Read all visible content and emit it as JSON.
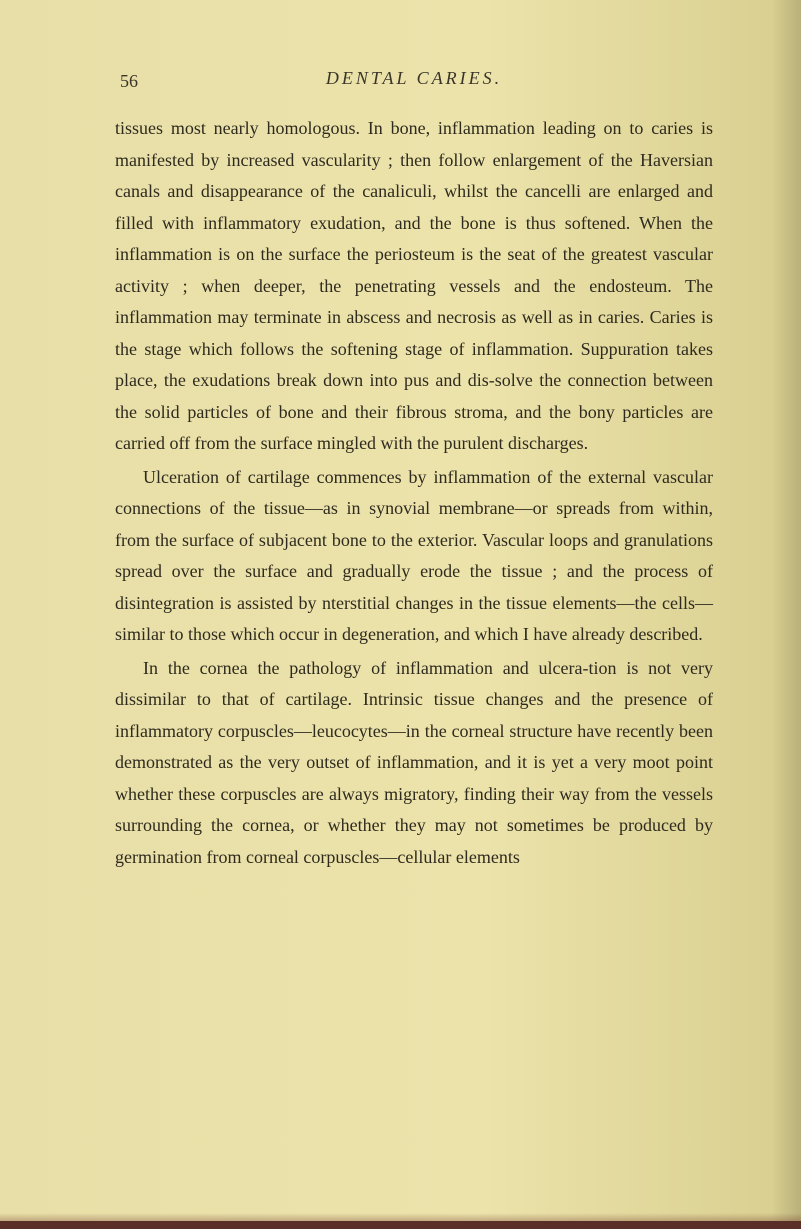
{
  "page": {
    "number": "56",
    "title": "DENTAL CARIES.",
    "background_color": "#e8dfa8",
    "text_color": "#2e2a1e",
    "font_family": "Georgia, serif",
    "font_size": 18,
    "line_height": 1.75,
    "paragraphs": [
      {
        "indent": false,
        "text": "tissues most nearly homologous. In bone, inflammation leading on to caries is manifested by increased vascularity ; then follow enlargement of the Haversian canals and disappearance of the canaliculi, whilst the cancelli are enlarged and filled with inflammatory exudation, and the bone is thus softened. When the inflammation is on the surface the periosteum is the seat of the greatest vascular activity ; when deeper, the penetrating vessels and the endosteum. The inflammation may terminate in abscess and necrosis as well as in caries. Caries is the stage which follows the softening stage of inflammation. Suppuration takes place, the exudations break down into pus and dis-solve the connection between the solid particles of bone and their fibrous stroma, and the bony particles are carried off from the surface mingled with the purulent discharges."
      },
      {
        "indent": true,
        "text": "Ulceration of cartilage commences by inflammation of the external vascular connections of the tissue—as in synovial membrane—or spreads from within, from the surface of subjacent bone to the exterior. Vascular loops and granulations spread over the surface and gradually erode the tissue ; and the process of disintegration is assisted by nterstitial changes in the tissue elements—the cells—similar to those which occur in degeneration, and which I have already described."
      },
      {
        "indent": true,
        "text": "In the cornea the pathology of inflammation and ulcera-tion is not very dissimilar to that of cartilage. Intrinsic tissue changes and the presence of inflammatory corpuscles—leucocytes—in the corneal structure have recently been demonstrated as the very outset of inflammation, and it is yet a very moot point whether these corpuscles are always migratory, finding their way from the vessels surrounding the cornea, or whether they may not sometimes be produced by germination from corneal corpuscles—cellular elements"
      }
    ]
  }
}
